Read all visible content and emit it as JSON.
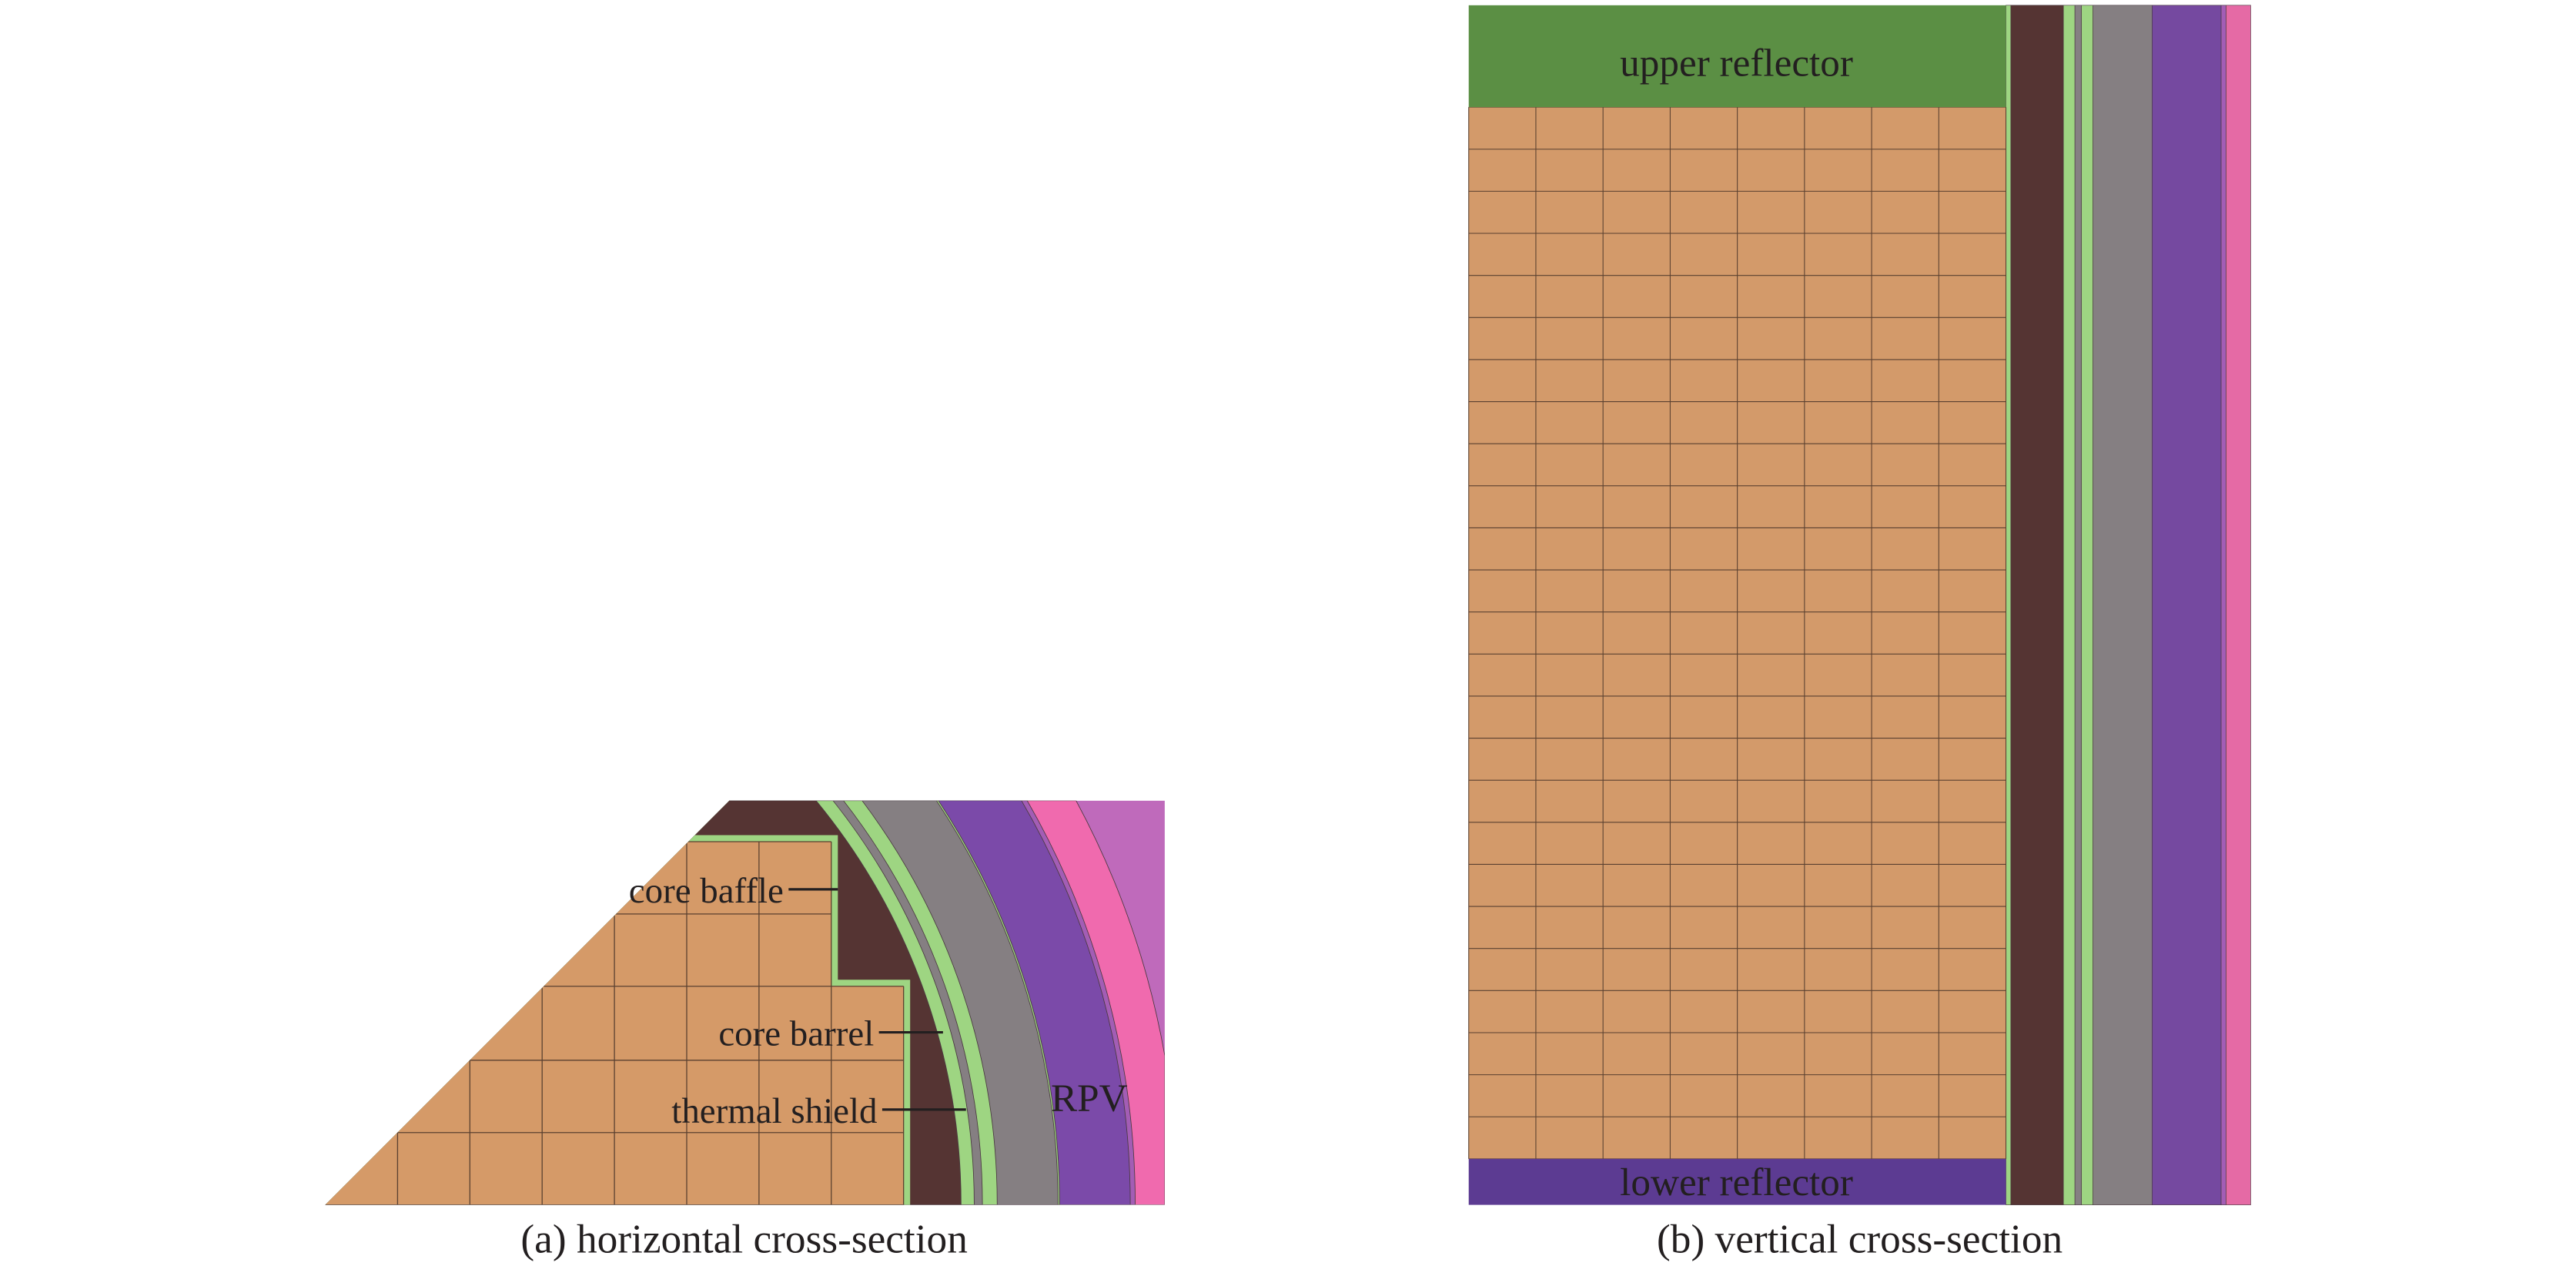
{
  "panel_a": {
    "caption": "(a) horizontal cross-section",
    "labels": {
      "core_baffle": "core baffle",
      "core_barrel": "core barrel",
      "thermal_shield": "thermal shield",
      "rpv": "RPV"
    }
  },
  "panel_b": {
    "caption": "(b) vertical cross-section",
    "labels": {
      "upper_reflector": "upper reflector",
      "lower_reflector": "lower reflector"
    },
    "fuel_grid": {
      "columns": 8,
      "rows": 25
    }
  },
  "colors": {
    "fuel": "#d59a68",
    "fuel_right": "#d39a6a",
    "water_gap": "#553433",
    "steel_green": "#9ed582",
    "gray": "#857f82",
    "purple": "#7b4aa9",
    "purple_right": "#7549a0",
    "violet_thin": "#a35db5",
    "pink": "#f06aae",
    "pink_right": "#e56aa5",
    "light_violet": "#bf6abb",
    "upper_reflector": "#5b8f44",
    "lower_reflector": "#5c3b92",
    "grid_line": "#5a4030",
    "text": "#231f20"
  }
}
